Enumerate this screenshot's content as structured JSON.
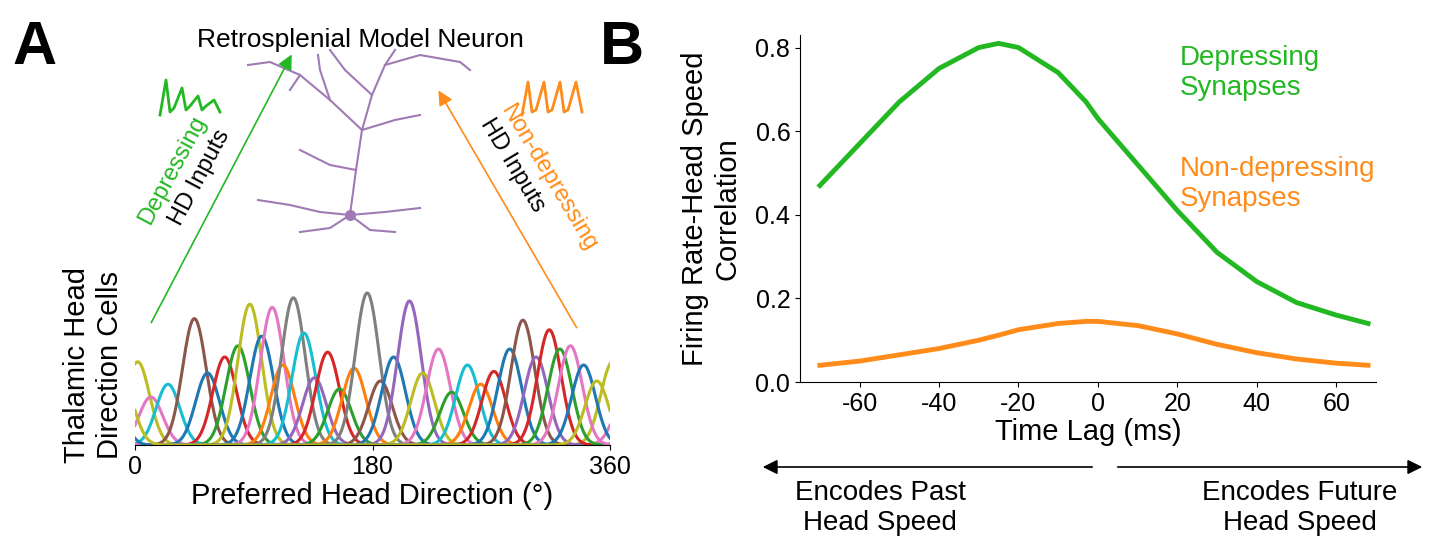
{
  "chart_data": [
    {
      "type": "line",
      "x_label": "Preferred Head Direction (°)",
      "y_label": "Thalamic Head\nDirection Cells",
      "xlim": [
        0,
        360
      ],
      "ylim": [
        0,
        1
      ],
      "xticks": [
        0,
        180,
        360
      ],
      "tick_labels": "x",
      "tuning_width": 9,
      "series": [
        {
          "center": 2,
          "peak": 0.52,
          "color": "#bcbd22"
        },
        {
          "center": 12,
          "peak": 0.3,
          "color": "#e377c2"
        },
        {
          "center": 25,
          "peak": 0.38,
          "color": "#17becf"
        },
        {
          "center": 45,
          "peak": 0.79,
          "color": "#8c564b"
        },
        {
          "center": 55,
          "peak": 0.45,
          "color": "#1f77b4"
        },
        {
          "center": 68,
          "peak": 0.55,
          "color": "#d62728"
        },
        {
          "center": 78,
          "peak": 0.62,
          "color": "#2ca02c"
        },
        {
          "center": 87,
          "peak": 0.88,
          "color": "#bcbd22"
        },
        {
          "center": 96,
          "peak": 0.68,
          "color": "#1f77b4"
        },
        {
          "center": 104,
          "peak": 0.86,
          "color": "#e377c2"
        },
        {
          "center": 112,
          "peak": 0.5,
          "color": "#ff7f0e"
        },
        {
          "center": 120,
          "peak": 0.92,
          "color": "#7f7f7f"
        },
        {
          "center": 128,
          "peak": 0.7,
          "color": "#17becf"
        },
        {
          "center": 136,
          "peak": 0.42,
          "color": "#9467bd"
        },
        {
          "center": 146,
          "peak": 0.58,
          "color": "#d62728"
        },
        {
          "center": 155,
          "peak": 0.35,
          "color": "#2ca02c"
        },
        {
          "center": 166,
          "peak": 0.48,
          "color": "#ff7f0e"
        },
        {
          "center": 176,
          "peak": 0.95,
          "color": "#7f7f7f"
        },
        {
          "center": 186,
          "peak": 0.4,
          "color": "#8c564b"
        },
        {
          "center": 196,
          "peak": 0.55,
          "color": "#1f77b4"
        },
        {
          "center": 208,
          "peak": 0.9,
          "color": "#9467bd"
        },
        {
          "center": 218,
          "peak": 0.45,
          "color": "#bcbd22"
        },
        {
          "center": 230,
          "peak": 0.6,
          "color": "#e377c2"
        },
        {
          "center": 240,
          "peak": 0.33,
          "color": "#2ca02c"
        },
        {
          "center": 252,
          "peak": 0.5,
          "color": "#17becf"
        },
        {
          "center": 262,
          "peak": 0.38,
          "color": "#ff7f0e"
        },
        {
          "center": 272,
          "peak": 0.46,
          "color": "#d62728"
        },
        {
          "center": 284,
          "peak": 0.6,
          "color": "#1f77b4"
        },
        {
          "center": 294,
          "peak": 0.78,
          "color": "#8c564b"
        },
        {
          "center": 304,
          "peak": 0.55,
          "color": "#9467bd"
        },
        {
          "center": 314,
          "peak": 0.72,
          "color": "#d62728"
        },
        {
          "center": 322,
          "peak": 0.6,
          "color": "#2ca02c"
        },
        {
          "center": 330,
          "peak": 0.62,
          "color": "#e377c2"
        },
        {
          "center": 340,
          "peak": 0.5,
          "color": "#1f77b4"
        },
        {
          "center": 350,
          "peak": 0.4,
          "color": "#bcbd22"
        }
      ]
    },
    {
      "type": "line",
      "x_label": "Time Lag (ms)",
      "y_label": "Firing Rate-Head Speed\nCorrelation",
      "xlim": [
        -75,
        70
      ],
      "ylim": [
        0,
        0.83
      ],
      "xticks": [
        -60,
        -40,
        -20,
        0,
        20,
        40,
        60
      ],
      "yticks": [
        {
          "value": 0,
          "label": "0.0"
        },
        {
          "value": 0.2,
          "label": "0.2"
        },
        {
          "value": 0.4,
          "label": "0.4"
        },
        {
          "value": 0.6,
          "label": "0.6"
        },
        {
          "value": 0.8,
          "label": "0.8"
        }
      ],
      "x": [
        -70,
        -60,
        -50,
        -40,
        -30,
        -25,
        -20,
        -10,
        -3,
        0,
        10,
        20,
        30,
        40,
        50,
        60,
        68
      ],
      "series": [
        {
          "name": "Depressing\nSynapses",
          "color": "#22b822",
          "values": [
            0.47,
            0.57,
            0.67,
            0.75,
            0.8,
            0.81,
            0.8,
            0.74,
            0.67,
            0.63,
            0.52,
            0.41,
            0.31,
            0.24,
            0.19,
            0.16,
            0.14
          ]
        },
        {
          "name": "Non-depressing\nSynapses",
          "color": "#ff8c1a",
          "values": [
            0.04,
            0.05,
            0.065,
            0.08,
            0.1,
            0.112,
            0.125,
            0.14,
            0.145,
            0.145,
            0.135,
            0.115,
            0.09,
            0.07,
            0.055,
            0.045,
            0.04
          ]
        }
      ],
      "annotations": [
        "Encodes Past\nHead Speed",
        "Encodes Future\nHead Speed"
      ]
    }
  ],
  "diagram": {
    "panel_labels": [
      "A",
      "B"
    ],
    "neuron_title": "Retrosplenial Model Neuron",
    "inputs": [
      {
        "name": "Depressing",
        "text": "HD Inputs",
        "color": "#22b822"
      },
      {
        "name": "Non-depressing",
        "text": "HD Inputs",
        "color": "#ff8c1a"
      }
    ]
  }
}
